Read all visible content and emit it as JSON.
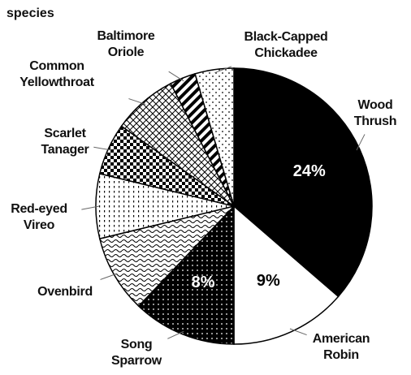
{
  "chart_data": {
    "type": "pie",
    "title": "species",
    "categories": [
      "Wood Thrush",
      "American Robin",
      "Song Sparrow",
      "Ovenbird",
      "Red-eyed Vireo",
      "Scarlet Tanager",
      "Common Yellowthroat",
      "Baltimore Oriole",
      "Black-Capped Chickadee"
    ],
    "values": [
      24,
      9,
      8,
      6,
      5,
      4,
      5,
      2,
      3
    ],
    "value_labels": [
      "24%",
      "9%",
      "8%",
      null,
      null,
      null,
      null,
      null,
      null
    ],
    "colors": [
      "#000000",
      "#ffffff",
      "pattern-dots-dark",
      "pattern-waves",
      "pattern-vdots",
      "pattern-checker",
      "pattern-crosshatch",
      "pattern-stripes",
      "pattern-dots-light"
    ]
  }
}
